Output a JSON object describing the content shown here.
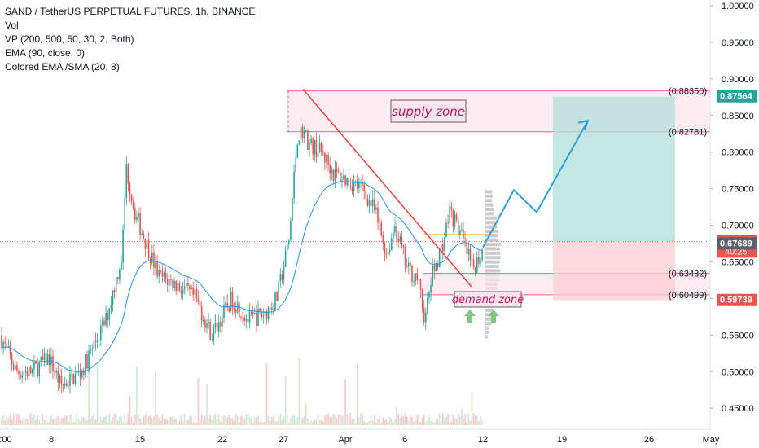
{
  "legend": {
    "title": "SAND / TetherUS PERPETUAL FUTURES, 1h, BINANCE",
    "indicators": [
      "Vol",
      "VP (200, 500, 50, 30, 2, Both)",
      "EMA (90, close, 0)",
      "Colored EMA /SMA (20, 8)"
    ]
  },
  "price_axis": {
    "ticks": [
      "1.00000",
      "0.95000",
      "0.90000",
      "0.85000",
      "0.80000",
      "0.75000",
      "0.70000",
      "0.65000",
      "0.60000",
      "0.55000",
      "0.50000",
      "0.45000"
    ],
    "levels": [
      {
        "label": "(0.88350)",
        "value": 0.8835
      },
      {
        "label": "(0.82781)",
        "value": 0.82781
      },
      {
        "label": "(0.63432)",
        "value": 0.63432
      },
      {
        "label": "(0.60499)",
        "value": 0.60499
      }
    ],
    "badges": [
      {
        "text": "0.87564",
        "value": 0.87564,
        "color": "#26a69a"
      },
      {
        "text": "0.67794",
        "value": 0.67794,
        "color": "#ef5350",
        "sub": "40:25"
      },
      {
        "text": "0.67689",
        "value": 0.67689,
        "color": "#5d606b"
      },
      {
        "text": "0.59739",
        "value": 0.59739,
        "color": "#ef5350"
      }
    ]
  },
  "time_axis": {
    "labels": [
      ":00",
      "8",
      "15",
      "22",
      "27",
      "Apr",
      "6",
      "12",
      "19",
      "26",
      "May"
    ]
  },
  "annotations": {
    "supply_zone": "supply zone",
    "demand_zone": "demand zone"
  },
  "colors": {
    "up": "#26a69a",
    "down": "#ef5350",
    "zone_fill": "#fce4ec",
    "zone_border": "#f06292",
    "target_fill": "#b2dfdb",
    "stop_fill": "#ffcdd2",
    "trendline": "#f44336",
    "projection": "#29a3d6",
    "arrow": "#81c784",
    "ema": "#2196f3"
  }
}
